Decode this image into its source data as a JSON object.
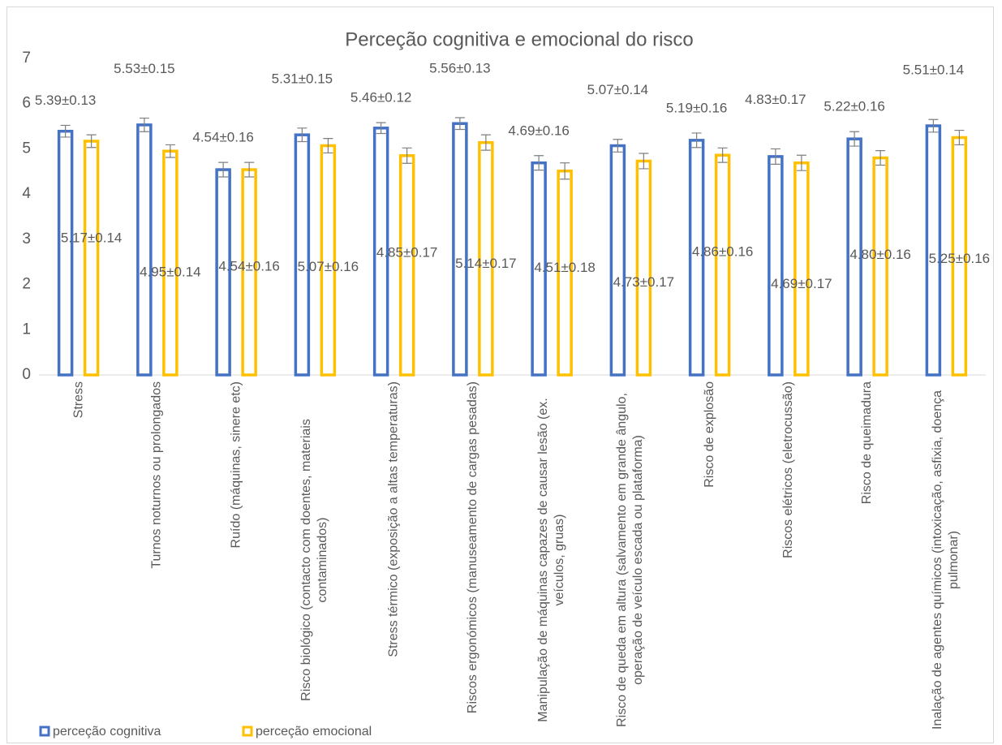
{
  "chart_data": {
    "type": "bar",
    "title": "Perceção cognitiva e emocional do risco",
    "categories": [
      "Stress",
      "Turnos noturnos ou prolongados",
      "Ruído (máquinas, sinere etc)",
      "Risco biológico (contacto com doentes, materiais contaminados)",
      "Stress térmico (exposição a altas temperaturas)",
      "Riscos ergonómicos (manuseamento de cargas pesadas)",
      "Manipulação de máquinas capazes de causar lesão (ex. veículos, gruas)",
      "Risco de queda em altura (salvamento em grande ângulo, operação de veículo escada ou plataforma)",
      "Risco de explosão",
      "Riscos elétricos (eletrocussão)",
      "Risco de queimadura",
      "Inalação de agentes químicos (intoxicação, asfixia, doença pulmonar)"
    ],
    "series": [
      {
        "name": "perceção cognitiva",
        "color": "#4472c4",
        "values": [
          5.39,
          5.53,
          4.54,
          5.31,
          5.46,
          5.56,
          4.69,
          5.07,
          5.19,
          4.83,
          5.22,
          5.51
        ],
        "errors": [
          0.13,
          0.15,
          0.16,
          0.15,
          0.12,
          0.13,
          0.16,
          0.14,
          0.16,
          0.17,
          0.16,
          0.14
        ],
        "value_labels": [
          "5.39±0.13",
          "5.53±0.15",
          "4.54±0.16",
          "5.31±0.15",
          "5.46±0.12",
          "5.56±0.13",
          "4.69±0.16",
          "5.07±0.14",
          "5.19±0.16",
          "4.83±0.17",
          "5.22±0.16",
          "5.51±0.14"
        ]
      },
      {
        "name": "perceção emocional",
        "color": "#ffc000",
        "values": [
          5.17,
          4.95,
          4.54,
          5.07,
          4.85,
          5.14,
          4.51,
          4.73,
          4.86,
          4.69,
          4.8,
          5.25
        ],
        "errors": [
          0.14,
          0.14,
          0.16,
          0.16,
          0.17,
          0.17,
          0.18,
          0.17,
          0.16,
          0.17,
          0.16,
          0.16
        ],
        "value_labels": [
          "5.17±0.14",
          "4.95±0.14",
          "4.54±0.16",
          "5.07±0.16",
          "4.85±0.17",
          "5.14±0.17",
          "4.51±0.18",
          "4.73±0.17",
          "4.86±0.16",
          "4.69±0.17",
          "4.80±0.16",
          "5.25±0.16"
        ]
      }
    ],
    "ylim": [
      0,
      7
    ],
    "yticks": [
      0,
      1,
      2,
      3,
      4,
      5,
      6,
      7
    ],
    "grid": false
  }
}
